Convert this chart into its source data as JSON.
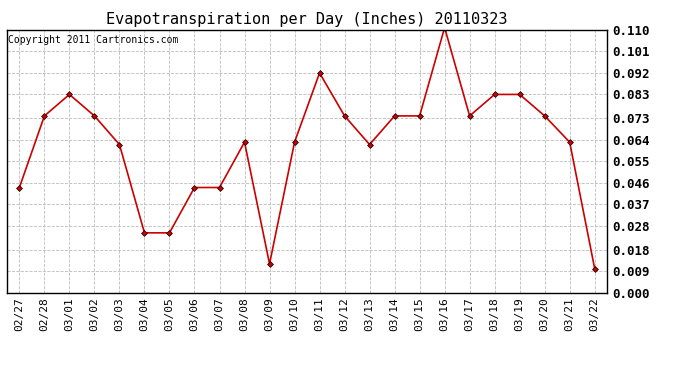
{
  "title": "Evapotranspiration per Day (Inches) 20110323",
  "copyright_text": "Copyright 2011 Cartronics.com",
  "dates": [
    "02/27",
    "02/28",
    "03/01",
    "03/02",
    "03/03",
    "03/04",
    "03/05",
    "03/06",
    "03/07",
    "03/08",
    "03/09",
    "03/10",
    "03/11",
    "03/12",
    "03/13",
    "03/14",
    "03/15",
    "03/16",
    "03/17",
    "03/18",
    "03/19",
    "03/20",
    "03/21",
    "03/22"
  ],
  "values": [
    0.044,
    0.074,
    0.083,
    0.074,
    0.062,
    0.025,
    0.025,
    0.044,
    0.044,
    0.063,
    0.012,
    0.063,
    0.092,
    0.074,
    0.062,
    0.074,
    0.074,
    0.111,
    0.074,
    0.083,
    0.083,
    0.074,
    0.063,
    0.01
  ],
  "line_color": "#cc0000",
  "marker": "D",
  "marker_size": 3,
  "background_color": "#ffffff",
  "plot_bg_color": "#ffffff",
  "grid_color": "#bbbbbb",
  "ylim": [
    0.0,
    0.11
  ],
  "yticks": [
    0.0,
    0.009,
    0.018,
    0.028,
    0.037,
    0.046,
    0.055,
    0.064,
    0.073,
    0.083,
    0.092,
    0.101,
    0.11
  ],
  "title_fontsize": 11,
  "copyright_fontsize": 7,
  "tick_fontsize": 8,
  "ytick_fontsize": 9
}
